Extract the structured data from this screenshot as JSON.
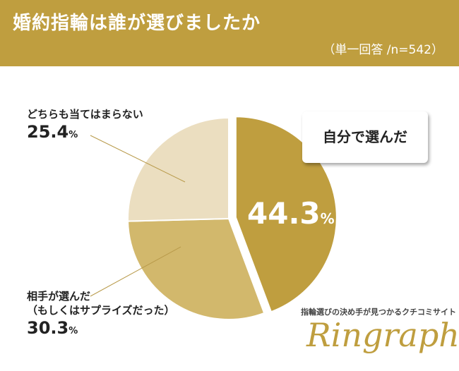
{
  "header": {
    "title": "婚約指輪は誰が選びましたか",
    "note": "（単一回答 /n=542）"
  },
  "callout": {
    "text": "自分で選んだ"
  },
  "brand": {
    "tagline": "指輪選びの決め手が見つかるクチコミサイト",
    "logo": "Ringraph"
  },
  "colors": {
    "header": "#bf9e3f",
    "self": "#bf9e3f",
    "partner": "#d2b86c",
    "neither": "#ebdec0"
  },
  "chart_data": {
    "type": "pie",
    "title": "婚約指輪は誰が選びましたか",
    "note": "（単一回答 /n=542）",
    "unit": "%",
    "slices": [
      {
        "label": "自分で選んだ",
        "value": 44.3,
        "value_text": "44.3",
        "color": "#bf9e3f"
      },
      {
        "label_lines": [
          "相手が選んだ",
          "（もしくはサプライズだった）"
        ],
        "value": 30.3,
        "value_text": "30.3",
        "color": "#d2b86c"
      },
      {
        "label": "どちらも当てはまらない",
        "value": 25.4,
        "value_text": "25.4",
        "color": "#ebdec0"
      }
    ]
  }
}
